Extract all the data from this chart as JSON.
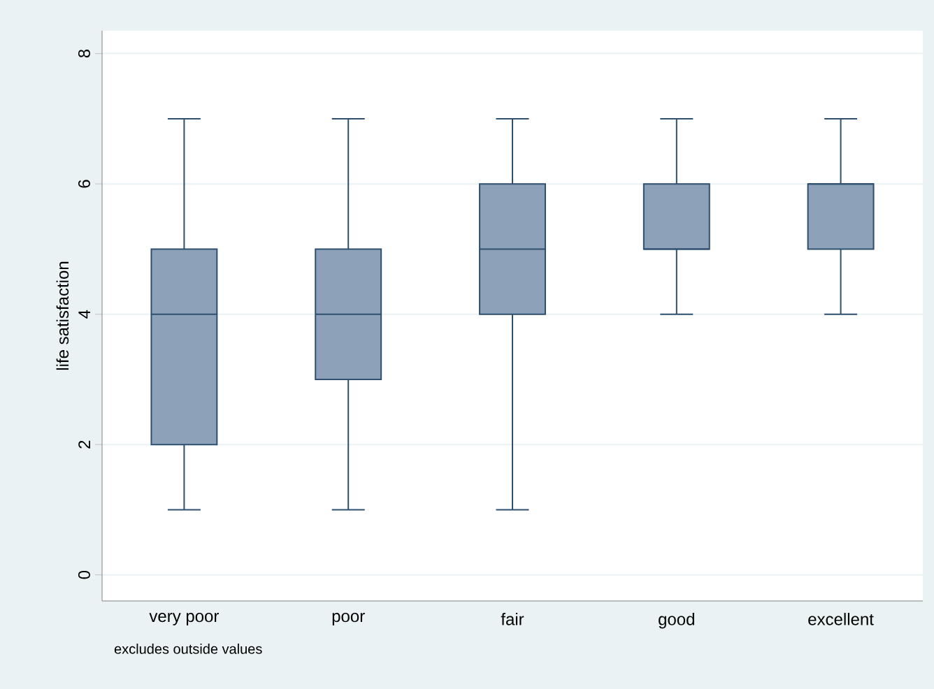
{
  "chart_data": {
    "type": "box",
    "ylabel": "life satisfaction",
    "categories": [
      "very poor",
      "poor",
      "fair",
      "good",
      "excellent"
    ],
    "boxes": [
      {
        "low": 1,
        "q1": 2,
        "median": 4,
        "q3": 5,
        "high": 7
      },
      {
        "low": 1,
        "q1": 3,
        "median": 4,
        "q3": 5,
        "high": 7
      },
      {
        "low": 1,
        "q1": 4,
        "median": 5,
        "q3": 6,
        "high": 7
      },
      {
        "low": 4,
        "q1": 5,
        "median": 5,
        "q3": 6,
        "high": 7
      },
      {
        "low": 4,
        "q1": 5,
        "median": 6,
        "q3": 6,
        "high": 7
      }
    ],
    "color": "#8da2b8",
    "ylim": [
      -0.4,
      8.35
    ],
    "yticks": [
      0,
      2,
      4,
      6,
      8
    ],
    "grid": "y",
    "annotations": [
      "excludes outside values"
    ]
  }
}
